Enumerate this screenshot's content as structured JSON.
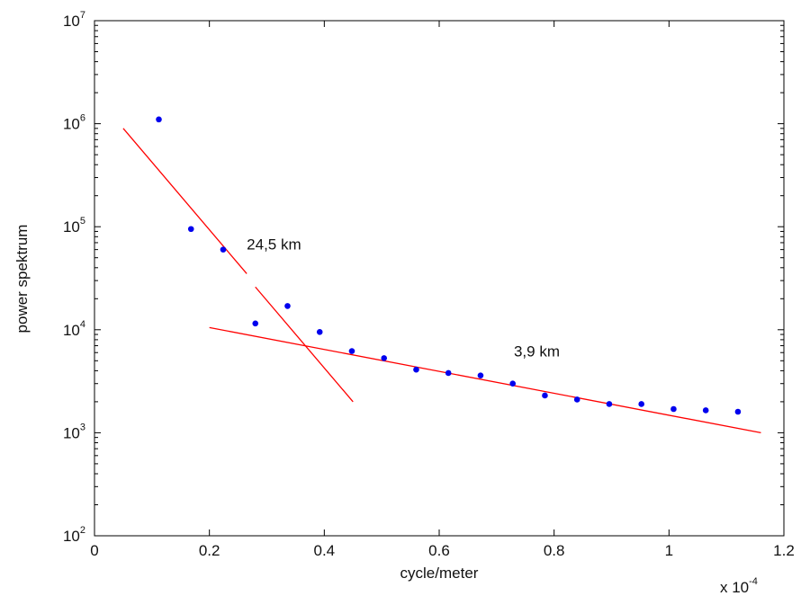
{
  "chart_data": {
    "type": "scatter",
    "title": "",
    "xlabel": "cycle/meter",
    "ylabel": "power spektrum",
    "x_multiplier_label": "x 10",
    "x_multiplier_exponent": "-4",
    "xlim": [
      0,
      1.2
    ],
    "ylim": [
      100,
      10000000
    ],
    "y_scale": "log",
    "grid": false,
    "legend": "none",
    "x_ticks": [
      "0",
      "0.2",
      "0.4",
      "0.6",
      "0.8",
      "1",
      "1.2"
    ],
    "y_ticks": [
      {
        "base": "10",
        "exp": "2",
        "value": 100
      },
      {
        "base": "10",
        "exp": "3",
        "value": 1000
      },
      {
        "base": "10",
        "exp": "4",
        "value": 10000
      },
      {
        "base": "10",
        "exp": "5",
        "value": 100000
      },
      {
        "base": "10",
        "exp": "6",
        "value": 1000000
      },
      {
        "base": "10",
        "exp": "7",
        "value": 10000000
      }
    ],
    "series": [
      {
        "color": "#0000ee",
        "marker": "dot",
        "x": [
          0.112,
          0.168,
          0.224,
          0.28,
          0.336,
          0.392,
          0.448,
          0.504,
          0.56,
          0.616,
          0.672,
          0.728,
          0.784,
          0.84,
          0.896,
          0.952,
          1.008,
          1.064,
          1.12
        ],
        "y": [
          1100000,
          95000,
          60000,
          11500,
          17000,
          9500,
          6200,
          5300,
          4100,
          3800,
          3600,
          3000,
          2300,
          2100,
          1900,
          1900,
          1700,
          1650,
          1600
        ]
      }
    ],
    "fit_lines": [
      {
        "color": "#ff0000",
        "x": [
          0.05,
          0.265
        ],
        "y": [
          900000,
          35000
        ]
      },
      {
        "color": "#ff0000",
        "x": [
          0.28,
          0.45
        ],
        "y": [
          26000,
          2000
        ]
      },
      {
        "color": "#ff0000",
        "x": [
          0.2,
          1.16
        ],
        "y": [
          10500,
          1000
        ]
      }
    ],
    "annotations": [
      {
        "text": "24,5 km",
        "x": 0.265,
        "y": 60000
      },
      {
        "text": "3,9 km",
        "x": 0.73,
        "y": 5500
      }
    ]
  }
}
